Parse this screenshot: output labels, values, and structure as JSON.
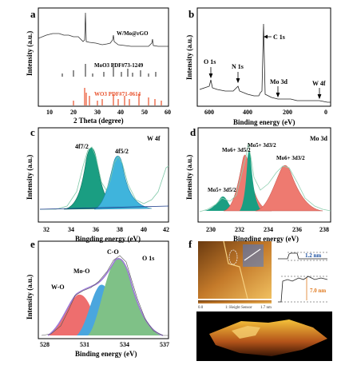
{
  "panels": {
    "a": {
      "letter": "a",
      "ylabel": "Intensity (a.u.)",
      "xlabel": "2 Theta (degree)",
      "xticks": [
        "10",
        "20",
        "30",
        "40",
        "50",
        "60"
      ],
      "legend_sample": "W/Mo@rGO",
      "legend_moo3": "MoO3 PDF#73-1249",
      "legend_wo3": "WO3 PDF#71-0614",
      "color_sample": "#333333",
      "color_moo3": "#222222",
      "color_wo3": "#e8502a"
    },
    "b": {
      "letter": "b",
      "ylabel": "Intensity (a.u.)",
      "xlabel": "Binding energy (eV)",
      "xticks": [
        "600",
        "400",
        "200",
        "0"
      ],
      "peaks": [
        "O 1s",
        "N 1s",
        "C 1s",
        "Mo 3d",
        "W 4f"
      ]
    },
    "c": {
      "letter": "c",
      "tag": "W 4f",
      "ylabel": "Intensity (a.u.)",
      "xlabel": "Bingding energy (eV)",
      "xticks": [
        "32",
        "34",
        "36",
        "38",
        "40",
        "42"
      ],
      "peak1": "4f7/2",
      "peak2": "4f5/2",
      "color_teal": "#1a9e82",
      "color_blue": "#3fb4dc"
    },
    "d": {
      "letter": "d",
      "tag": "Mo 3d",
      "ylabel": "Intensity (a.u.)",
      "xlabel": "Bingding energy (eV)",
      "xticks": [
        "230",
        "232",
        "234",
        "236",
        "238"
      ],
      "labels": [
        "Mo5+ 3d5/2",
        "Mo6+ 3d5/2",
        "Mo5+ 3d3/2",
        "Mo6+ 3d3/2"
      ],
      "color_teal": "#1a9e82",
      "color_red": "#ee7a70"
    },
    "e": {
      "letter": "e",
      "tag": "O 1s",
      "ylabel": "Intensity (a.u.)",
      "xlabel": "Binding energy (eV)",
      "xticks": [
        "528",
        "531",
        "534",
        "537"
      ],
      "labels": [
        "W-O",
        "Mo-O",
        "C-O"
      ],
      "color_red": "#ee6e6e",
      "color_blue": "#4aa6de",
      "color_green": "#7fc187",
      "color_envelope": "#9d7bd8"
    },
    "f": {
      "letter": "f",
      "sensor_label": "1: Height Sensor",
      "scale_left": "0.0",
      "scale_right": "1.7 nm",
      "step1": "1.2 nm",
      "step2": "7.0 nm"
    }
  }
}
